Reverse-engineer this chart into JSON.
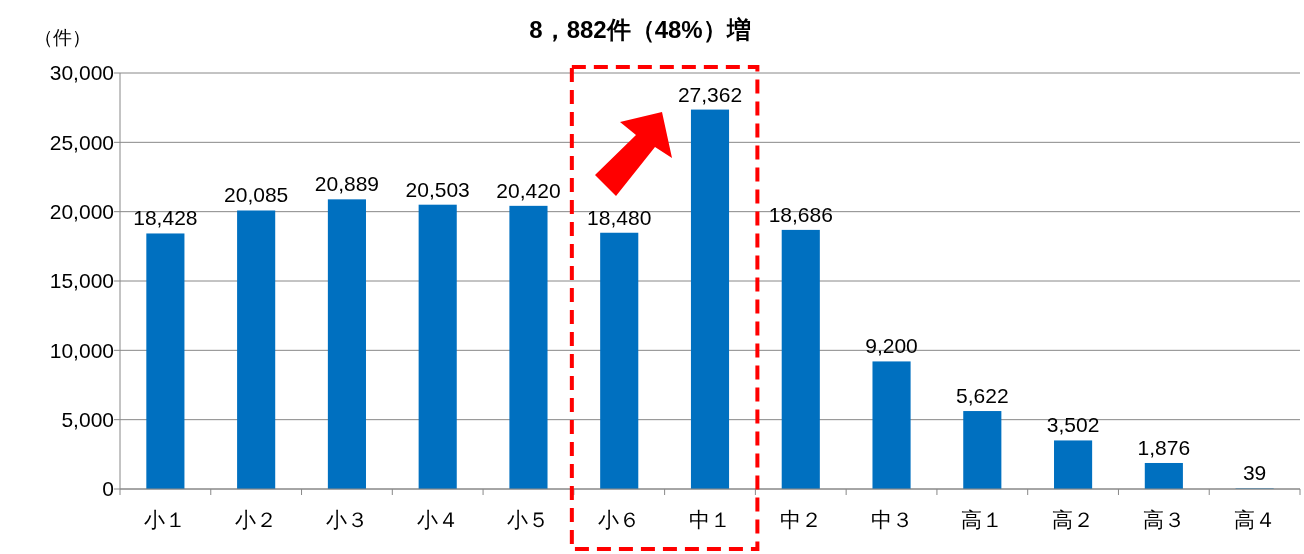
{
  "chart_data": {
    "type": "bar",
    "title": "8，882件（48%）増",
    "ylabel": "（件）",
    "categories": [
      "小１",
      "小２",
      "小３",
      "小４",
      "小５",
      "小６",
      "中１",
      "中２",
      "中３",
      "高１",
      "高２",
      "高３",
      "高４"
    ],
    "values": [
      18428,
      20085,
      20889,
      20503,
      20420,
      18480,
      27362,
      18686,
      9200,
      5622,
      3502,
      1876,
      39
    ],
    "value_labels": [
      "18,428",
      "20,085",
      "20,889",
      "20,503",
      "20,420",
      "18,480",
      "27,362",
      "18,686",
      "9,200",
      "5,622",
      "3,502",
      "1,876",
      "39"
    ],
    "color": "#0070c0",
    "grid": "y",
    "ylim": [
      0,
      30000
    ],
    "yticks": [
      {
        "value": 0,
        "label": "0"
      },
      {
        "value": 5000,
        "label": "5,000"
      },
      {
        "value": 10000,
        "label": "10,000"
      },
      {
        "value": 15000,
        "label": "15,000"
      },
      {
        "value": 20000,
        "label": "20,000"
      },
      {
        "value": 25000,
        "label": "25,000"
      },
      {
        "value": 30000,
        "label": "30,000"
      }
    ]
  }
}
